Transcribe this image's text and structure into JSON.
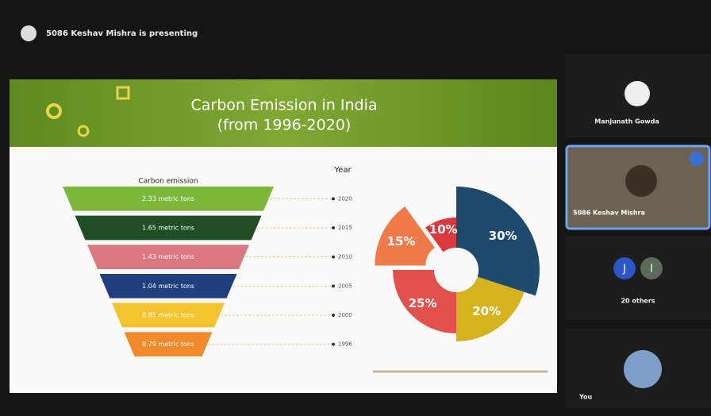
{
  "banner": {
    "text": "5086 Keshav Mishra is presenting"
  },
  "slide": {
    "title": [
      "Carbon Emission in India",
      "(from 1996-2020)"
    ],
    "funnel": {
      "header": "Carbon emission",
      "year_header": "Year",
      "rows": [
        {
          "label": "2.33 metric tons",
          "year": "2020",
          "color": "#7cb83a"
        },
        {
          "label": "1.65 metric tons",
          "year": "2015",
          "color": "#1f4d24"
        },
        {
          "label": "1.43 metric tons",
          "year": "2010",
          "color": "#d9787f"
        },
        {
          "label": "1.04 metric tons",
          "year": "2005",
          "color": "#1f3f7e"
        },
        {
          "label": "0.85 metric tons",
          "year": "2000",
          "color": "#f3c32d"
        },
        {
          "label": "0.79 metric tons",
          "year": "1996",
          "color": "#f08a2a"
        }
      ]
    },
    "donut": {
      "values": [
        30,
        20,
        25,
        15,
        10
      ],
      "value_labels": [
        "30%",
        "20%",
        "25%",
        "15%",
        "10%"
      ],
      "colors": [
        "#1e4a6e",
        "#d7b21f",
        "#e2514e",
        "#f07a4a",
        "#d9383d"
      ]
    }
  },
  "sidebar": {
    "participants": [
      {
        "name": "Manjunath Gowda"
      },
      {
        "name": "5086 Keshav Mishra"
      }
    ],
    "others": {
      "initials": [
        "J",
        "I"
      ],
      "label": "20 others"
    },
    "self": {
      "name": "You"
    }
  }
}
